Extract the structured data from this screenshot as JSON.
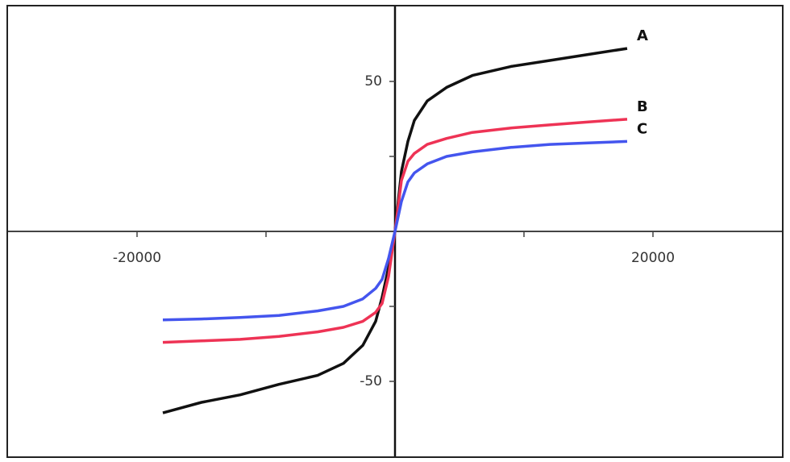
{
  "chart_data": {
    "type": "line",
    "x": [
      -18000,
      -15000,
      -12000,
      -9000,
      -6000,
      -4000,
      -2500,
      -1500,
      -1000,
      -500,
      0,
      500,
      1000,
      1500,
      2500,
      4000,
      6000,
      9000,
      12000,
      15000,
      18000
    ],
    "series": [
      {
        "name": "A",
        "color": "#111111",
        "values": [
          -60.5,
          -57,
          -54.5,
          -51,
          -48,
          -44,
          -38,
          -30,
          -22,
          -12,
          0,
          20,
          30,
          37,
          43.5,
          48,
          52,
          55,
          57,
          59,
          61
        ]
      },
      {
        "name": "B",
        "color": "#ee3355",
        "values": [
          -37,
          -36.5,
          -36,
          -35,
          -33.5,
          -32,
          -30,
          -27,
          -24,
          -15,
          0,
          17,
          23.4,
          26,
          29,
          31,
          33,
          34.5,
          35.5,
          36.5,
          37.4
        ]
      },
      {
        "name": "C",
        "color": "#4455ee",
        "values": [
          -29.5,
          -29.2,
          -28.7,
          -28,
          -26.5,
          -25,
          -22.5,
          -19,
          -16,
          -9,
          0,
          10,
          16.5,
          19.5,
          22.5,
          25,
          26.5,
          28,
          29,
          29.5,
          30
        ]
      }
    ],
    "xlim": [
      -30000,
      30000
    ],
    "ylim": [
      -75,
      75
    ],
    "xticks": [
      -20000,
      20000
    ],
    "yticks": [
      -50,
      50
    ],
    "minor_xticks": [
      -10000,
      10000
    ],
    "minor_yticks": [
      -25,
      25
    ]
  }
}
